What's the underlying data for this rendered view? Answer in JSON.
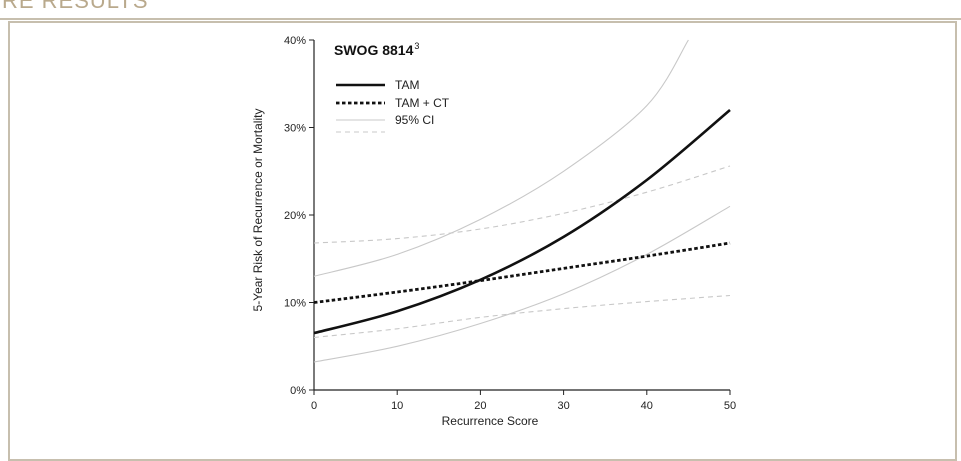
{
  "page": {
    "section_heading_partial": "RE RESULTS"
  },
  "colors": {
    "frame": "#c7bfae",
    "heading": "#b9a98c",
    "tam": "#111111",
    "tam_ct": "#111111",
    "ci": "#c8c8c8"
  },
  "chart_data": {
    "type": "line",
    "title": "SWOG 8814",
    "title_superscript": "3",
    "xlabel": "Recurrence Score",
    "ylabel": "5-Year Risk of Recurrence or Mortality",
    "xlim": [
      0,
      50
    ],
    "ylim": [
      0,
      40
    ],
    "x_ticks": [
      0,
      10,
      20,
      30,
      40,
      50
    ],
    "x_tick_labels": [
      "0",
      "10",
      "20",
      "30",
      "40",
      "50"
    ],
    "y_ticks": [
      0,
      10,
      20,
      30,
      40
    ],
    "y_tick_labels": [
      "0%",
      "10%",
      "20%",
      "30%",
      "40%"
    ],
    "grid": false,
    "legend_position": "top-left",
    "legend": [
      {
        "label": "TAM",
        "style": "solid-thick"
      },
      {
        "label": "TAM + CT",
        "style": "dotted-thick"
      },
      {
        "label": "95% CI",
        "style": "solid-thin-gray"
      },
      {
        "label": "",
        "style": "dashed-thin-gray"
      }
    ],
    "series": [
      {
        "name": "TAM",
        "style": "solid-thick",
        "x": [
          0,
          10,
          20,
          30,
          40,
          50
        ],
        "y": [
          6.5,
          9.0,
          12.6,
          17.5,
          24.0,
          32.0
        ]
      },
      {
        "name": "TAM + CT",
        "style": "dotted-thick",
        "x": [
          0,
          10,
          20,
          30,
          40,
          50
        ],
        "y": [
          10.0,
          11.2,
          12.5,
          13.9,
          15.3,
          16.8
        ]
      },
      {
        "name": "TAM 95% CI upper",
        "style": "solid-thin-gray",
        "x": [
          0,
          10,
          20,
          30,
          40,
          45
        ],
        "y": [
          13.0,
          15.5,
          19.5,
          25.0,
          32.5,
          40.0
        ]
      },
      {
        "name": "TAM 95% CI lower",
        "style": "solid-thin-gray",
        "x": [
          0,
          10,
          20,
          30,
          40,
          50
        ],
        "y": [
          3.2,
          5.0,
          7.6,
          11.0,
          15.5,
          21.0
        ]
      },
      {
        "name": "TAM + CT 95% CI upper",
        "style": "dashed-thin-gray",
        "x": [
          0,
          10,
          20,
          30,
          40,
          50
        ],
        "y": [
          16.8,
          17.3,
          18.4,
          20.2,
          22.6,
          25.6
        ]
      },
      {
        "name": "TAM + CT 95% CI lower",
        "style": "dashed-thin-gray",
        "x": [
          0,
          10,
          20,
          30,
          40,
          50
        ],
        "y": [
          6.0,
          7.0,
          8.3,
          9.3,
          10.1,
          10.8
        ]
      }
    ]
  }
}
